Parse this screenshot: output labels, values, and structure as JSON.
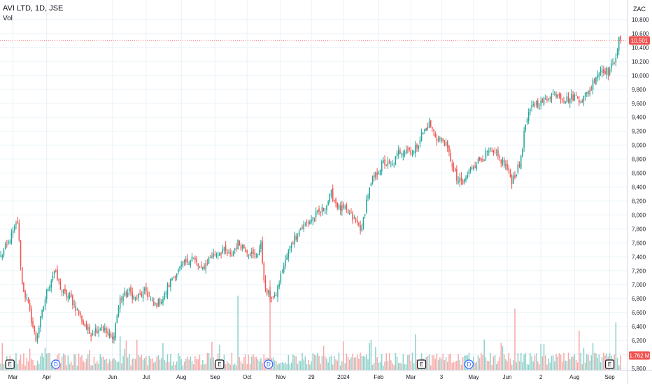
{
  "legend": {
    "symbol": "AVI LTD, 1D, JSE",
    "volume": "Vol"
  },
  "currency": "ZAC",
  "colors": {
    "up": "#26a69a",
    "down": "#ef5350",
    "up_volume": "#8fd2cb",
    "down_volume": "#f7a9a7",
    "grid": "#e7f2f8",
    "last_price_line": "#ef5350"
  },
  "chart_data": {
    "type": "candlestick",
    "title": "AVI LTD, 1D, JSE",
    "ylabel": "ZAC",
    "ylim": [
      5770,
      10830
    ],
    "y_ticks": [
      5800,
      6000,
      6200,
      6400,
      6600,
      6800,
      7000,
      7200,
      7400,
      7600,
      7800,
      8000,
      8200,
      8400,
      8600,
      8800,
      9000,
      9200,
      9400,
      9600,
      9800,
      10000,
      10200,
      10400,
      10600,
      10800
    ],
    "y_tick_labels": [
      "5,800",
      "6,000",
      "6,200",
      "6,400",
      "6,600",
      "6,800",
      "7,000",
      "7,200",
      "7,400",
      "7,600",
      "7,800",
      "8,000",
      "8,200",
      "8,400",
      "8,600",
      "8,800",
      "9,000",
      "9,200",
      "9,400",
      "9,600",
      "9,800",
      "10,000",
      "10,200",
      "10,400",
      "10,600",
      "10,800"
    ],
    "x_labels": [
      {
        "label": "Mar",
        "bar": 8
      },
      {
        "label": "Apr",
        "bar": 30
      },
      {
        "label": "Jun",
        "bar": 73
      },
      {
        "label": "Jul",
        "bar": 95
      },
      {
        "label": "Aug",
        "bar": 118
      },
      {
        "label": "Sep",
        "bar": 140
      },
      {
        "label": "Oct",
        "bar": 161
      },
      {
        "label": "Nov",
        "bar": 183
      },
      {
        "label": "29",
        "bar": 203
      },
      {
        "label": "2024",
        "bar": 224
      },
      {
        "label": "Feb",
        "bar": 247
      },
      {
        "label": "Mar",
        "bar": 268
      },
      {
        "label": "3",
        "bar": 288
      },
      {
        "label": "May",
        "bar": 309
      },
      {
        "label": "Jun",
        "bar": 331
      },
      {
        "label": "2",
        "bar": 353
      },
      {
        "label": "Aug",
        "bar": 375
      },
      {
        "label": "Sep",
        "bar": 398
      }
    ],
    "anchors": [
      [
        0,
        7400
      ],
      [
        5,
        7600
      ],
      [
        11,
        7900
      ],
      [
        14,
        7000
      ],
      [
        18,
        6700
      ],
      [
        23,
        6200
      ],
      [
        30,
        6900
      ],
      [
        35,
        7200
      ],
      [
        40,
        6900
      ],
      [
        46,
        6800
      ],
      [
        53,
        6500
      ],
      [
        58,
        6300
      ],
      [
        66,
        6400
      ],
      [
        73,
        6200
      ],
      [
        78,
        6800
      ],
      [
        84,
        6900
      ],
      [
        88,
        6800
      ],
      [
        95,
        6900
      ],
      [
        100,
        6700
      ],
      [
        106,
        6800
      ],
      [
        112,
        7100
      ],
      [
        120,
        7300
      ],
      [
        125,
        7400
      ],
      [
        131,
        7200
      ],
      [
        137,
        7400
      ],
      [
        145,
        7500
      ],
      [
        150,
        7400
      ],
      [
        155,
        7600
      ],
      [
        161,
        7500
      ],
      [
        166,
        7400
      ],
      [
        170,
        7550
      ],
      [
        173,
        6900
      ],
      [
        179,
        6800
      ],
      [
        184,
        7200
      ],
      [
        190,
        7600
      ],
      [
        196,
        7800
      ],
      [
        201,
        7900
      ],
      [
        206,
        8000
      ],
      [
        212,
        8100
      ],
      [
        216,
        8300
      ],
      [
        221,
        8100
      ],
      [
        226,
        8050
      ],
      [
        232,
        7900
      ],
      [
        236,
        7800
      ],
      [
        239,
        8200
      ],
      [
        243,
        8500
      ],
      [
        250,
        8750
      ],
      [
        256,
        8700
      ],
      [
        260,
        8900
      ],
      [
        265,
        8950
      ],
      [
        270,
        8900
      ],
      [
        275,
        9150
      ],
      [
        280,
        9300
      ],
      [
        285,
        9100
      ],
      [
        290,
        9050
      ],
      [
        294,
        8800
      ],
      [
        298,
        8500
      ],
      [
        302,
        8450
      ],
      [
        308,
        8700
      ],
      [
        314,
        8800
      ],
      [
        319,
        8900
      ],
      [
        324,
        8850
      ],
      [
        330,
        8700
      ],
      [
        334,
        8500
      ],
      [
        339,
        8700
      ],
      [
        343,
        9300
      ],
      [
        348,
        9600
      ],
      [
        353,
        9600
      ],
      [
        358,
        9700
      ],
      [
        364,
        9750
      ],
      [
        369,
        9650
      ],
      [
        375,
        9700
      ],
      [
        380,
        9650
      ],
      [
        385,
        9800
      ],
      [
        389,
        10000
      ],
      [
        393,
        10100
      ],
      [
        397,
        10050
      ],
      [
        401,
        10200
      ],
      [
        404,
        10501
      ]
    ],
    "last_close": 10501,
    "last_close_label": "10,501",
    "volume": {
      "label": "Vol",
      "last": 1762000,
      "last_label": "1.762 M",
      "tall_bars": [
        {
          "bar": 155,
          "value": 9100000
        },
        {
          "bar": 176,
          "value": 11000000
        },
        {
          "bar": 336,
          "value": 7500000
        },
        {
          "bar": 402,
          "value": 5800000
        },
        {
          "bar": 224,
          "value": 3500000
        },
        {
          "bar": 378,
          "value": 4800000
        }
      ]
    },
    "events": [
      {
        "type": "E",
        "bar": 6
      },
      {
        "type": "D",
        "bar": 36
      },
      {
        "type": "E",
        "bar": 143
      },
      {
        "type": "D",
        "bar": 175
      },
      {
        "type": "E",
        "bar": 275
      },
      {
        "type": "D",
        "bar": 306
      },
      {
        "type": "E",
        "bar": 398
      }
    ]
  }
}
